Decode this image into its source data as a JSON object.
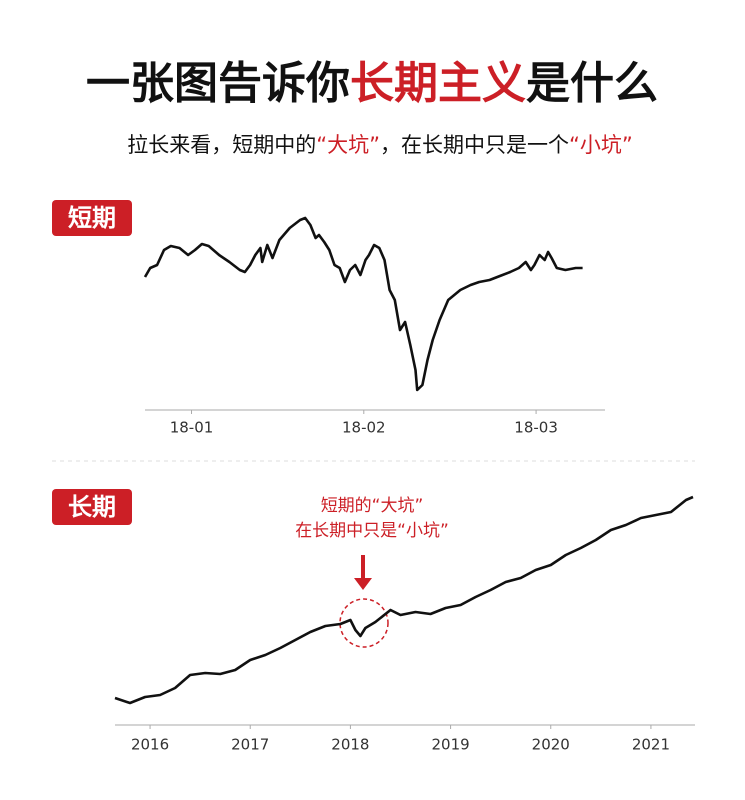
{
  "header": {
    "highlight_color": "#cc1f26",
    "title": [
      {
        "text": "一张图告诉你"
      },
      {
        "text": "长期主义",
        "highlight": true
      },
      {
        "text": "是什么"
      }
    ],
    "subtitle": [
      {
        "text": "拉长来看，短期中的"
      },
      {
        "text": "“大坑”",
        "highlight": true
      },
      {
        "text": "，在长期中只是一个"
      },
      {
        "text": "“小坑”",
        "highlight": true
      }
    ]
  },
  "chart_data": [
    {
      "type": "line",
      "label": "短期",
      "color": "#111111",
      "x": [
        0.73,
        0.76,
        0.8,
        0.84,
        0.88,
        0.93,
        0.98,
        1.02,
        1.06,
        1.1,
        1.16,
        1.22,
        1.28,
        1.31,
        1.34,
        1.37,
        1.4,
        1.41,
        1.44,
        1.47,
        1.51,
        1.57,
        1.63,
        1.66,
        1.69,
        1.72,
        1.74,
        1.77,
        1.8,
        1.83,
        1.86,
        1.89,
        1.92,
        1.95,
        1.98,
        2.01,
        2.03,
        2.06,
        2.09,
        2.12,
        2.15,
        2.18,
        2.21,
        2.24,
        2.27,
        2.3,
        2.31,
        2.34,
        2.37,
        2.4,
        2.44,
        2.49,
        2.56,
        2.62,
        2.67,
        2.73,
        2.79,
        2.85,
        2.9,
        2.94,
        2.97,
        2.99,
        3.02,
        3.05,
        3.07,
        3.09,
        3.12,
        3.17,
        3.23,
        3.27
      ],
      "values": [
        123,
        132,
        135,
        150,
        154,
        152,
        145,
        150,
        156,
        154,
        145,
        138,
        130,
        128,
        135,
        145,
        152,
        138,
        155,
        142,
        160,
        172,
        180,
        182,
        175,
        162,
        165,
        158,
        150,
        135,
        132,
        118,
        130,
        135,
        125,
        140,
        145,
        155,
        152,
        140,
        110,
        100,
        70,
        78,
        55,
        30,
        10,
        15,
        40,
        60,
        80,
        100,
        110,
        115,
        118,
        120,
        124,
        128,
        132,
        138,
        130,
        135,
        145,
        140,
        148,
        142,
        132,
        130,
        132,
        132
      ],
      "xlim": [
        0.73,
        3.4
      ],
      "ylim": [
        0,
        190
      ],
      "xticks": [
        {
          "value": 1,
          "label": "18-01"
        },
        {
          "value": 2,
          "label": "18-02"
        },
        {
          "value": 3,
          "label": "18-03"
        }
      ]
    },
    {
      "type": "line",
      "label": "长期",
      "color": "#111111",
      "x": [
        2015.65,
        2015.8,
        2015.95,
        2016.1,
        2016.25,
        2016.4,
        2016.55,
        2016.7,
        2016.85,
        2017,
        2017.15,
        2017.3,
        2017.45,
        2017.6,
        2017.75,
        2017.9,
        2018,
        2018.05,
        2018.1,
        2018.15,
        2018.25,
        2018.4,
        2018.5,
        2018.65,
        2018.8,
        2018.95,
        2019.1,
        2019.25,
        2019.4,
        2019.55,
        2019.7,
        2019.85,
        2020,
        2020.15,
        2020.3,
        2020.45,
        2020.6,
        2020.75,
        2020.9,
        2021.05,
        2021.2,
        2021.35,
        2021.42
      ],
      "values": [
        22,
        17,
        23,
        25,
        32,
        45,
        47,
        46,
        50,
        60,
        65,
        72,
        80,
        88,
        94,
        96,
        100,
        90,
        84,
        92,
        98,
        110,
        105,
        108,
        106,
        112,
        115,
        123,
        130,
        138,
        142,
        150,
        155,
        165,
        172,
        180,
        190,
        195,
        202,
        205,
        208,
        220,
        223
      ],
      "xlim": [
        2015.65,
        2021.44
      ],
      "ylim": [
        0,
        240
      ],
      "xticks": [
        2016,
        2017,
        2018,
        2019,
        2020,
        2021
      ],
      "annotations": [
        "短期的“大坑”",
        "在长期中只是“小坑”"
      ]
    }
  ]
}
